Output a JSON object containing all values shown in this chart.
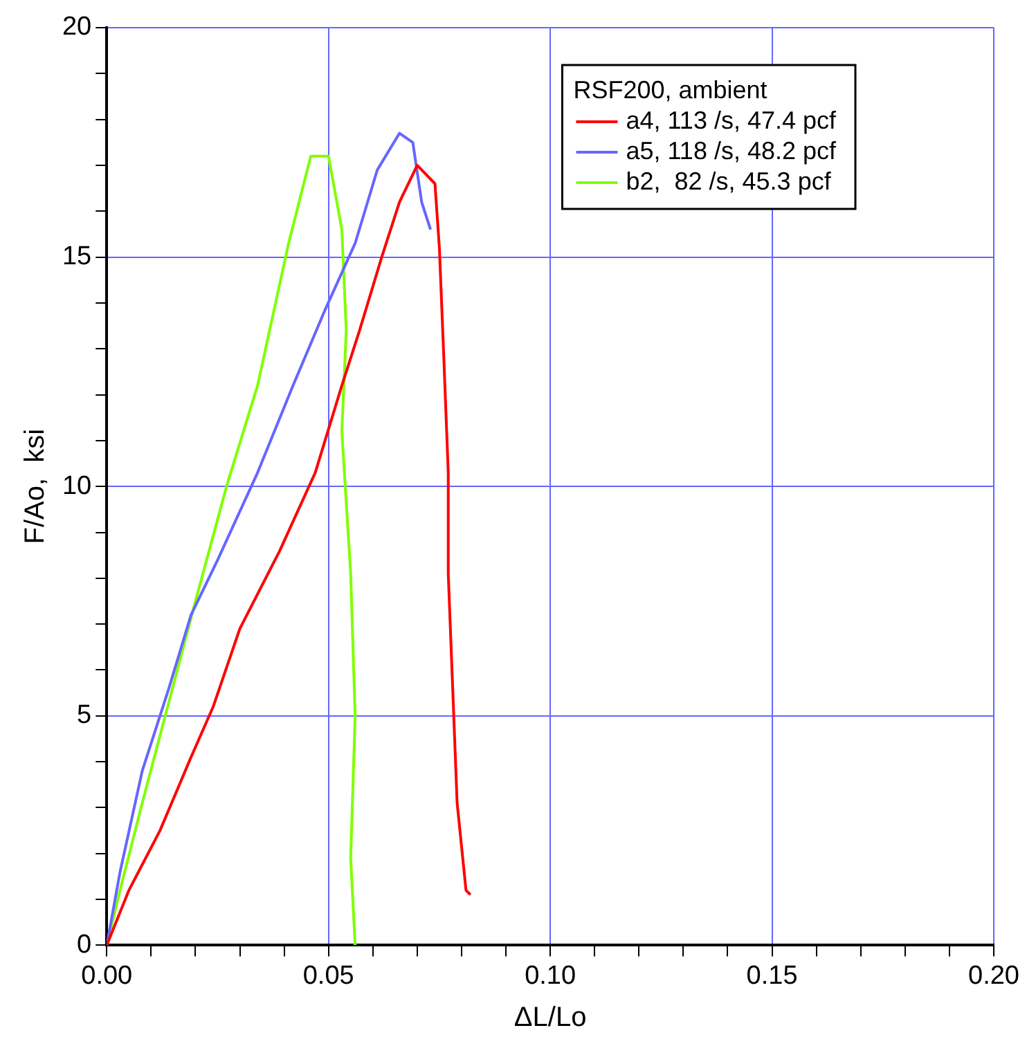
{
  "chart_data": {
    "type": "line",
    "xlabel": "ΔL/Lo",
    "ylabel": "F/Ao,  ksi",
    "legend_title": "RSF200, ambient",
    "xlim": [
      0,
      0.2
    ],
    "ylim": [
      0,
      20
    ],
    "xticks": [
      {
        "value": 0,
        "label": "0.00"
      },
      {
        "value": 0.01,
        "label": null
      },
      {
        "value": 0.02,
        "label": null
      },
      {
        "value": 0.03,
        "label": null
      },
      {
        "value": 0.04,
        "label": null
      },
      {
        "value": 0.05,
        "label": "0.05"
      },
      {
        "value": 0.06,
        "label": null
      },
      {
        "value": 0.07,
        "label": null
      },
      {
        "value": 0.08,
        "label": null
      },
      {
        "value": 0.09,
        "label": null
      },
      {
        "value": 0.1,
        "label": "0.10"
      },
      {
        "value": 0.11,
        "label": null
      },
      {
        "value": 0.12,
        "label": null
      },
      {
        "value": 0.13,
        "label": null
      },
      {
        "value": 0.14,
        "label": null
      },
      {
        "value": 0.15,
        "label": "0.15"
      },
      {
        "value": 0.16,
        "label": null
      },
      {
        "value": 0.17,
        "label": null
      },
      {
        "value": 0.18,
        "label": null
      },
      {
        "value": 0.19,
        "label": null
      },
      {
        "value": 0.2,
        "label": "0.20"
      }
    ],
    "yticks": [
      0,
      {
        "value": 1,
        "label": null
      },
      {
        "value": 2,
        "label": null
      },
      {
        "value": 3,
        "label": null
      },
      {
        "value": 4,
        "label": null
      },
      5,
      {
        "value": 6,
        "label": null
      },
      {
        "value": 7,
        "label": null
      },
      {
        "value": 8,
        "label": null
      },
      {
        "value": 9,
        "label": null
      },
      10,
      {
        "value": 11,
        "label": null
      },
      {
        "value": 12,
        "label": null
      },
      {
        "value": 13,
        "label": null
      },
      {
        "value": 14,
        "label": null
      },
      15,
      {
        "value": 16,
        "label": null
      },
      {
        "value": 17,
        "label": null
      },
      {
        "value": 18,
        "label": null
      },
      {
        "value": 19,
        "label": null
      },
      20
    ],
    "grid": true,
    "legend": "top right",
    "marker": "none",
    "line_style": "solid",
    "series": [
      {
        "name": "a4, 113 /s, 47.4 pcf",
        "color": "#ff0000",
        "x": [
          0,
          0.005,
          0.012,
          0.019,
          0.024,
          0.03,
          0.039,
          0.047,
          0.053,
          0.057,
          0.062,
          0.066,
          0.07,
          0.074,
          0.075,
          0.076,
          0.077,
          0.077,
          0.078,
          0.079,
          0.081,
          0.082
        ],
        "values": [
          0,
          1.2,
          2.5,
          4.1,
          5.2,
          6.9,
          8.6,
          10.3,
          12.2,
          13.4,
          15.0,
          16.2,
          17.0,
          16.6,
          15.2,
          12.8,
          10.3,
          8.1,
          5.6,
          3.1,
          1.2,
          1.1
        ]
      },
      {
        "name": "a5, 118 /s, 48.2 pcf",
        "color": "#6666ff",
        "x": [
          0,
          0.003,
          0.008,
          0.014,
          0.019,
          0.025,
          0.034,
          0.042,
          0.049,
          0.056,
          0.061,
          0.066,
          0.069,
          0.071,
          0.073
        ],
        "values": [
          0,
          1.6,
          3.8,
          5.6,
          7.2,
          8.4,
          10.3,
          12.2,
          13.8,
          15.3,
          16.9,
          17.7,
          17.5,
          16.2,
          15.6
        ]
      },
      {
        "name": "b2,  82 /s, 45.3 pcf",
        "color": "#80ff00",
        "x": [
          0,
          0.003,
          0.008,
          0.014,
          0.02,
          0.027,
          0.034,
          0.041,
          0.046,
          0.05,
          0.053,
          0.054,
          0.053,
          0.055,
          0.056,
          0.055,
          0.056
        ],
        "values": [
          0,
          1.2,
          3.1,
          5.3,
          7.5,
          10.0,
          12.2,
          15.3,
          17.2,
          17.2,
          15.6,
          13.4,
          11.2,
          8.1,
          5.0,
          1.9,
          0
        ]
      }
    ]
  }
}
